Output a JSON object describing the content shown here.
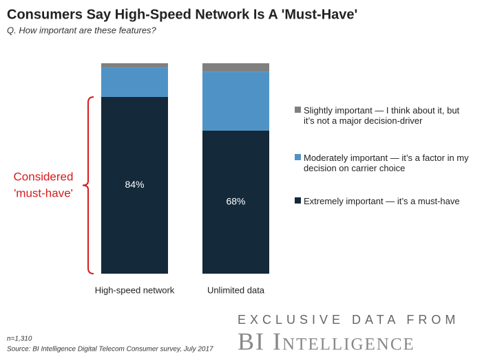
{
  "chart_data": {
    "type": "stacked_bar",
    "title": "Consumers Say High-Speed Network Is A 'Must-Have'",
    "subtitle": "Q. How important are these features?",
    "categories": [
      "High-speed network",
      "Unlimited data"
    ],
    "series": [
      {
        "name": "Extremely important — it’s a must-have",
        "color": "#14293a",
        "values": [
          84,
          68
        ],
        "value_labels": [
          "84%",
          "68%"
        ]
      },
      {
        "name": "Moderately important — it’s a factor in my decision on carrier choice",
        "color": "#4f93c6",
        "values": [
          14,
          28
        ]
      },
      {
        "name": "Slightly important — I think about it, but it’s not a major decision-driver",
        "color": "#808080",
        "values": [
          2,
          4
        ]
      }
    ],
    "annotation": [
      "Considered",
      "'must-have'"
    ],
    "note": "n=1,310",
    "source": "Source: BI Intelligence Digital Telecom Consumer survey, July 2017",
    "branding": {
      "tagline": "EXCLUSIVE DATA FROM",
      "logo": "BI Intelligence"
    }
  }
}
